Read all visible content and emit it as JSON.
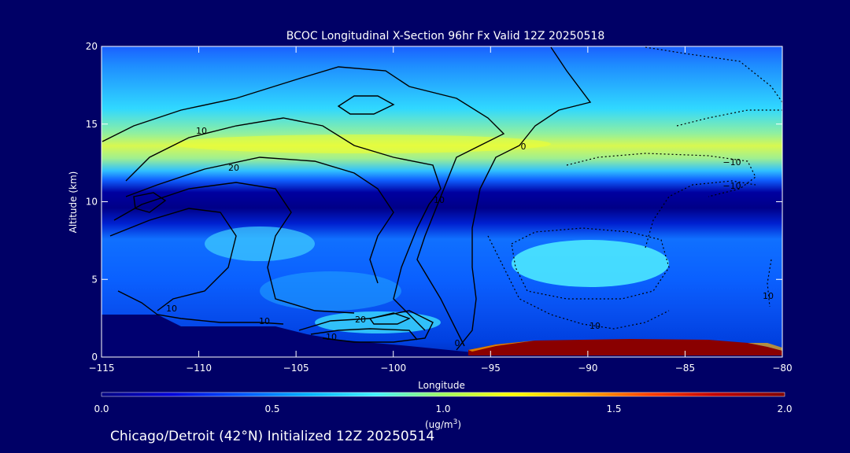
{
  "chart_data": {
    "type": "heatmap",
    "title": "BCOC Longitudinal X-Section 96hr  Fx Valid 12Z 20250518",
    "subtitle": "Chicago/Detroit (42°N) Initialized 12Z 20250514",
    "xlabel": "Longitude",
    "ylabel": "Altitude (km)",
    "xlim": [
      -115,
      -80
    ],
    "ylim": [
      0,
      20
    ],
    "x_ticks": [
      "−115",
      "−110",
      "−105",
      "−100",
      "−95",
      "−90",
      "−85",
      "−80"
    ],
    "x_tick_values": [
      -115,
      -110,
      -105,
      -100,
      -95,
      -90,
      -85,
      -80
    ],
    "y_ticks": [
      "0",
      "5",
      "10",
      "15",
      "20"
    ],
    "y_tick_values": [
      0,
      5,
      10,
      15,
      20
    ],
    "colorbar": {
      "label": "(ug/m",
      "label_sup": "3",
      "label_end": ")",
      "range": [
        0.0,
        2.0
      ],
      "tick_labels": [
        "0.0",
        "0.5",
        "1.0",
        "1.5",
        "2.0"
      ],
      "tick_values": [
        0.0,
        0.5,
        1.0,
        1.5,
        2.0
      ],
      "colors": [
        "#000080",
        "#0000d8",
        "#0050ff",
        "#00b0ff",
        "#40f0ff",
        "#a0ff60",
        "#ffff00",
        "#ffb000",
        "#ff4000",
        "#c00000",
        "#800000"
      ]
    },
    "shaded_field": {
      "description_values_ug_m3": [
        {
          "region": "upper layer 13-15 km",
          "lon_range": [
            -112,
            -80
          ],
          "alt_range": [
            12.5,
            15
          ],
          "value": 0.95
        },
        {
          "region": "band 15-18 km",
          "lon_range": [
            -115,
            -80
          ],
          "alt_range": [
            15,
            18
          ],
          "value": 0.6
        },
        {
          "region": "mid-level maximum",
          "lon_range": [
            -92,
            -85
          ],
          "alt_range": [
            5,
            7.5
          ],
          "value": 0.8
        },
        {
          "region": "tropopause minimum",
          "lon_range": [
            -115,
            -80
          ],
          "alt_range": [
            10,
            12
          ],
          "value": 0.05
        },
        {
          "region": "surface maximum",
          "lon_range": [
            -95,
            -81
          ],
          "alt_range": [
            0,
            1
          ],
          "value": 2.0
        }
      ]
    },
    "contour_labels": [
      "10",
      "20",
      "10",
      "10",
      "20",
      "10",
      "0",
      "0",
      "10",
      "10",
      "−10",
      "−10",
      "10"
    ],
    "grid": false
  }
}
